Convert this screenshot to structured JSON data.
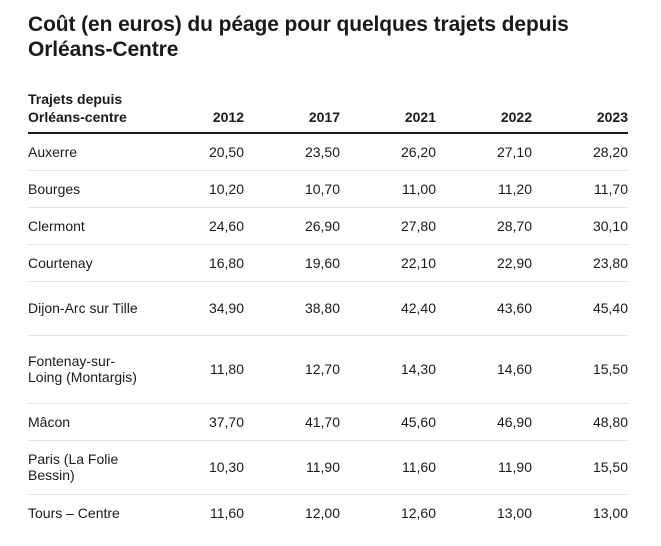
{
  "chart_data": {
    "type": "table",
    "title": "Coût (en euros) du péage pour quelques trajets depuis Orléans-Centre",
    "columns": [
      "Trajets depuis Orléans-centre",
      "2012",
      "2017",
      "2021",
      "2022",
      "2023"
    ],
    "rows": [
      {
        "label": "Auxerre",
        "values": [
          "20,50",
          "23,50",
          "26,20",
          "27,10",
          "28,20"
        ]
      },
      {
        "label": "Bourges",
        "values": [
          "10,20",
          "10,70",
          "11,00",
          "11,20",
          "11,70"
        ]
      },
      {
        "label": "Clermont",
        "values": [
          "24,60",
          "26,90",
          "27,80",
          "28,70",
          "30,10"
        ]
      },
      {
        "label": "Courtenay",
        "values": [
          "16,80",
          "19,60",
          "22,10",
          "22,90",
          "23,80"
        ]
      },
      {
        "label": "Dijon-Arc sur Tille",
        "values": [
          "34,90",
          "38,80",
          "42,40",
          "43,60",
          "45,40"
        ]
      },
      {
        "label": "Fontenay-sur-Loing (Montargis)",
        "values": [
          "11,80",
          "12,70",
          "14,30",
          "14,60",
          "15,50"
        ]
      },
      {
        "label": "Mâcon",
        "values": [
          "37,70",
          "41,70",
          "45,60",
          "46,90",
          "48,80"
        ]
      },
      {
        "label": "Paris (La Folie Bessin)",
        "values": [
          "10,30",
          "11,90",
          "11,60",
          "11,90",
          "15,50"
        ]
      },
      {
        "label": "Tours – Centre",
        "values": [
          "11,60",
          "12,00",
          "12,60",
          "13,00",
          "13,00"
        ]
      }
    ]
  }
}
